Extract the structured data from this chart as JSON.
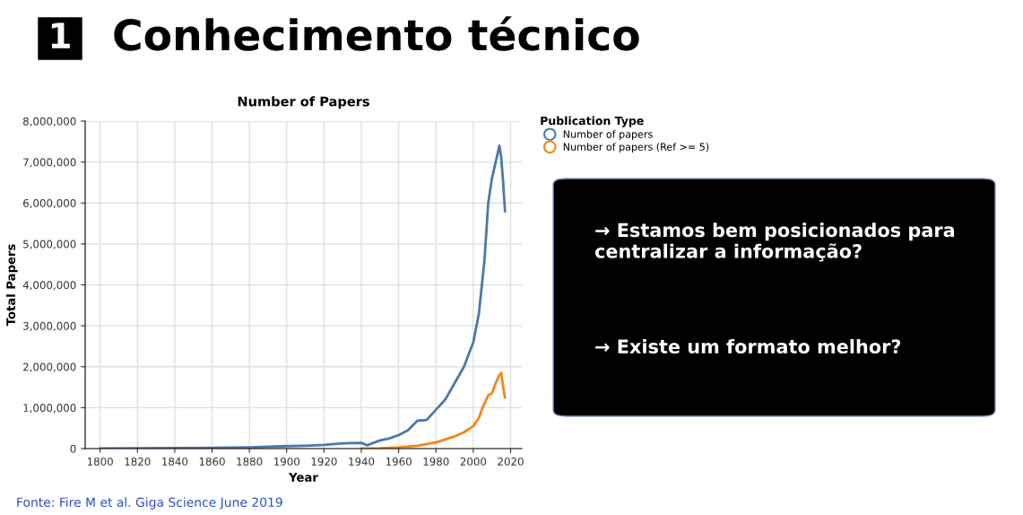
{
  "chart_data": [
    {
      "type": "other",
      "title": "Conhecimento técnico",
      "annotations": [
        "1"
      ]
    },
    {
      "type": "line",
      "title": "Number of Papers",
      "xlabel": "Year",
      "ylabel": "Total Papers",
      "legend_title": "Publication Type",
      "legend": "top right",
      "grid": true,
      "marker": "none",
      "line_style": "solid",
      "xlim": [
        1792,
        2026
      ],
      "xticks": [
        1800,
        1820,
        1840,
        1860,
        1880,
        1900,
        1920,
        1940,
        1960,
        1980,
        2000,
        2020
      ],
      "ylim": [
        0,
        8000000
      ],
      "yticks": [
        {
          "value": 0,
          "label": "0"
        },
        {
          "value": 1000000,
          "label": "1,000,000"
        },
        {
          "value": 2000000,
          "label": "2,000,000"
        },
        {
          "value": 3000000,
          "label": "3,000,000"
        },
        {
          "value": 4000000,
          "label": "4,000,000"
        },
        {
          "value": 5000000,
          "label": "5,000,000"
        },
        {
          "value": 6000000,
          "label": "6,000,000"
        },
        {
          "value": 7000000,
          "label": "7,000,000"
        },
        {
          "value": 8000000,
          "label": "8,000,000"
        }
      ],
      "series": [
        {
          "name": "Number of papers",
          "color": "#4c78a8",
          "x": [
            1800,
            1820,
            1840,
            1860,
            1880,
            1900,
            1910,
            1920,
            1930,
            1940,
            1943,
            1950,
            1955,
            1960,
            1965,
            1970,
            1975,
            1980,
            1985,
            1990,
            1995,
            2000,
            2003,
            2006,
            2008,
            2010,
            2012,
            2014,
            2015,
            2016,
            2017
          ],
          "values": [
            5000,
            10000,
            15000,
            20000,
            30000,
            60000,
            70000,
            90000,
            130000,
            140000,
            80000,
            200000,
            250000,
            330000,
            450000,
            680000,
            700000,
            950000,
            1200000,
            1600000,
            2000000,
            2600000,
            3300000,
            4600000,
            6000000,
            6600000,
            7000000,
            7400000,
            7100000,
            6500000,
            5800000
          ]
        },
        {
          "name": "Number of papers (Ref >= 5)",
          "color": "#f58518",
          "x": [
            1940,
            1950,
            1960,
            1970,
            1980,
            1990,
            1995,
            2000,
            2003,
            2005,
            2008,
            2010,
            2012,
            2014,
            2015,
            2016,
            2017
          ],
          "values": [
            5000,
            10000,
            30000,
            70000,
            150000,
            300000,
            400000,
            550000,
            750000,
            1000000,
            1300000,
            1350000,
            1600000,
            1800000,
            1850000,
            1500000,
            1250000
          ]
        }
      ],
      "annotations": [
        "Fonte: Fire M et al. Giga Science June 2019"
      ]
    },
    {
      "type": "other",
      "annotations": [
        "→ Estamos bem posicionados para centralizar a informação?",
        "→ Existe um formato melhor?"
      ]
    }
  ]
}
